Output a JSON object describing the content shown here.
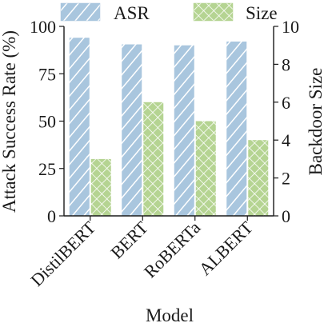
{
  "chart_data": {
    "type": "bar",
    "title": "",
    "xlabel": "Model",
    "ylabel": "Attack Success Rate (%)",
    "y2label": "Backdoor Size",
    "categories": [
      "DistilBERT",
      "BERT",
      "RoBERTa",
      "ALBERT"
    ],
    "ylim": [
      0,
      100
    ],
    "y2lim": [
      0,
      10
    ],
    "yticks": [
      "0",
      "25",
      "50",
      "75",
      "100"
    ],
    "y2ticks": [
      "0",
      "2",
      "4",
      "6",
      "8",
      "10"
    ],
    "legend_position": "top",
    "series": [
      {
        "name": "ASR",
        "axis": "left",
        "values": [
          94,
          90.5,
          90,
          92
        ],
        "color": "#a9c6de",
        "pattern": "diagonal-hatch"
      },
      {
        "name": "Size",
        "axis": "right",
        "values": [
          3,
          6,
          5,
          4
        ],
        "color": "#b5d492",
        "pattern": "crosshatch"
      }
    ]
  }
}
